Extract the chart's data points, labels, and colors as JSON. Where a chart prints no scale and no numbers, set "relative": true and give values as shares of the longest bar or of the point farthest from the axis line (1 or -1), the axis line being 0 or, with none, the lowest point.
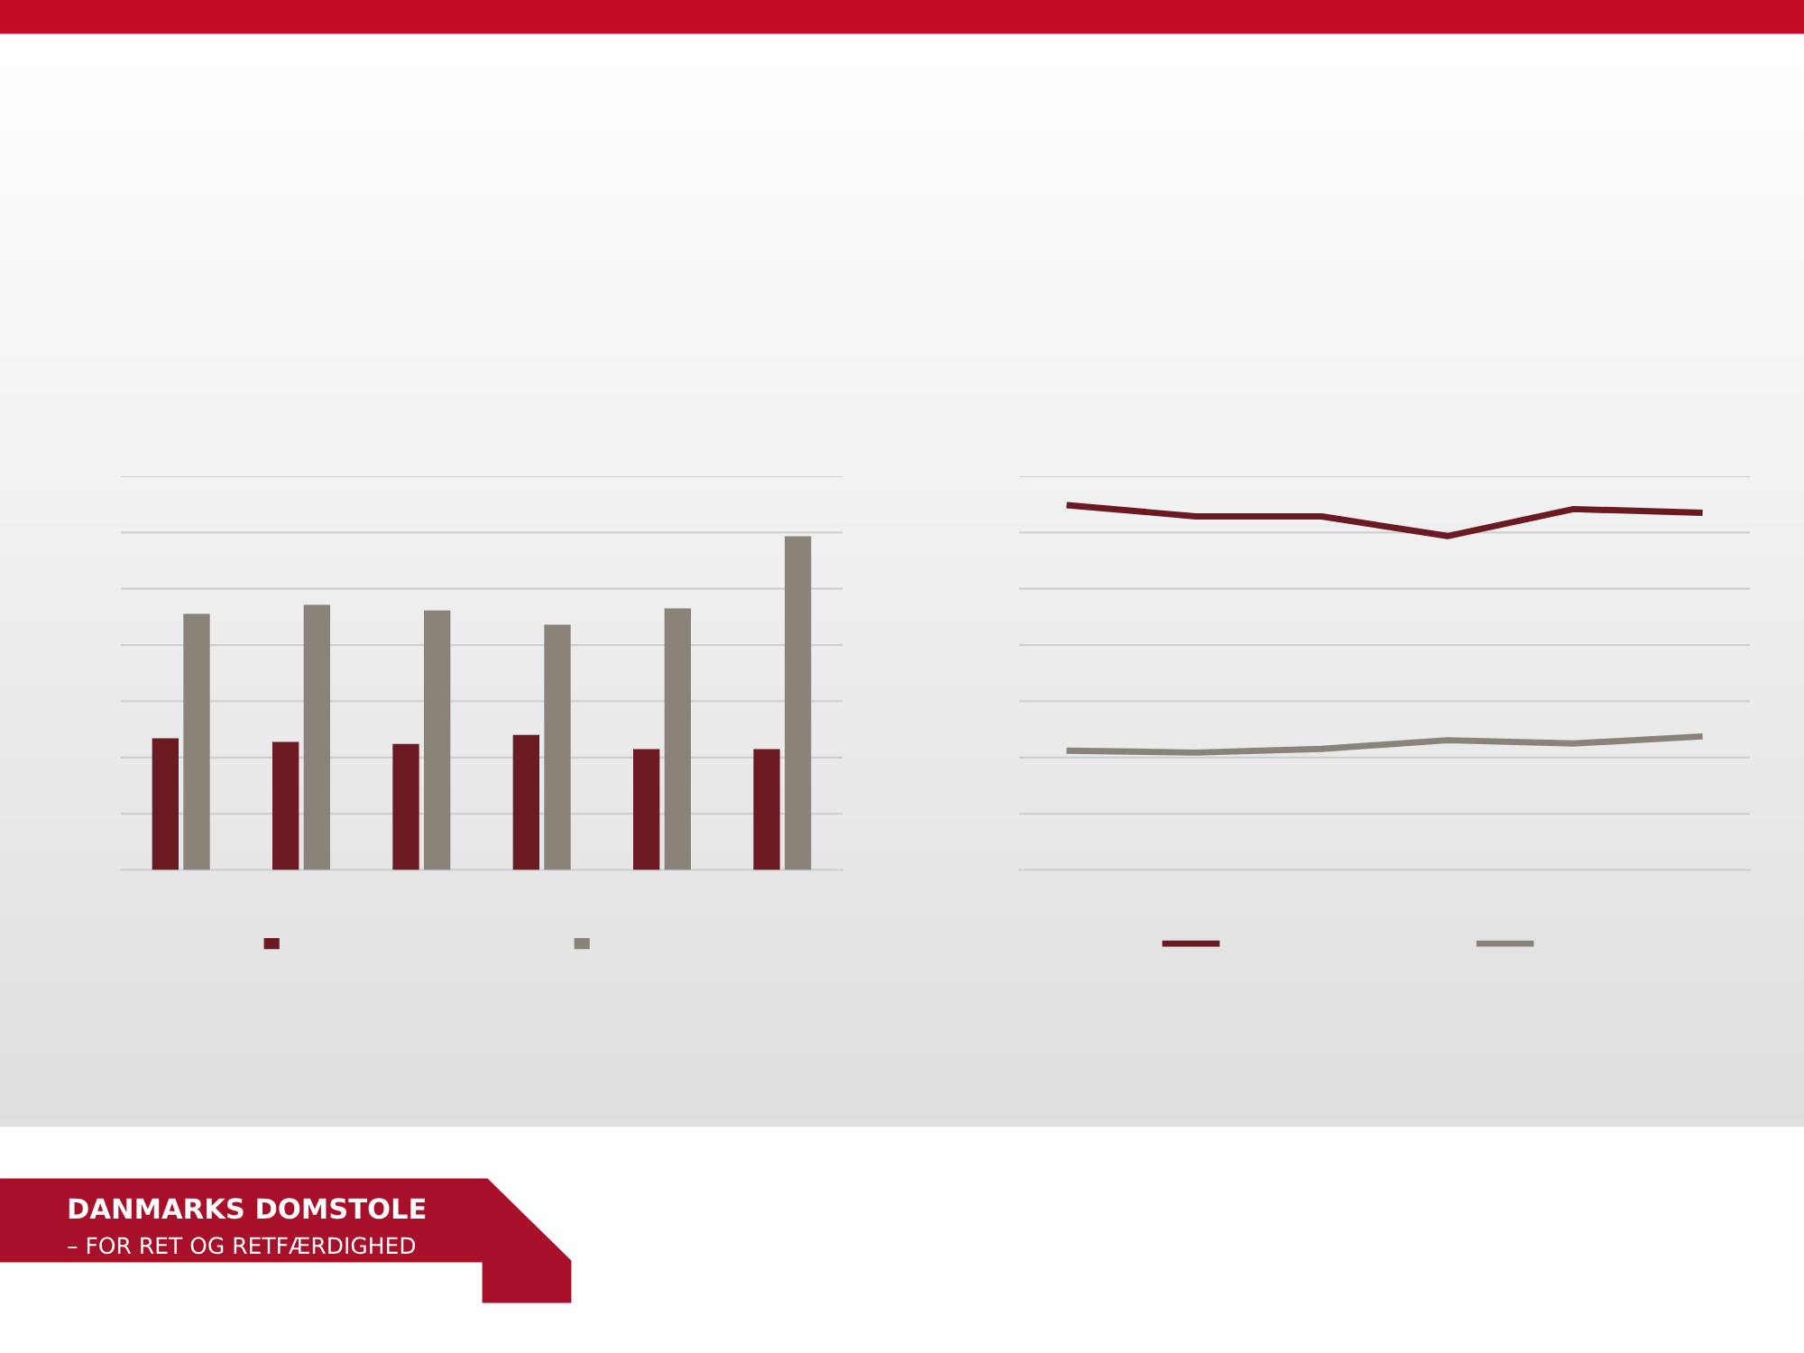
{
  "chart_data": [
    {
      "type": "bar",
      "relative": true,
      "categories": [
        null,
        null,
        null,
        null,
        null,
        null
      ],
      "grid": "y",
      "tick_labels": false,
      "series": [
        {
          "color": "#6b1a22",
          "values": [
            0.395,
            0.384,
            0.378,
            0.405,
            0.362,
            0.362
          ]
        },
        {
          "color": "#8a837a",
          "values": [
            0.768,
            0.795,
            0.778,
            0.735,
            0.784,
            1
          ]
        }
      ]
    },
    {
      "type": "line",
      "relative": true,
      "categories": [
        null,
        null,
        null,
        null,
        null,
        null
      ],
      "grid": "y",
      "tick_labels": false,
      "marker": "none",
      "line_style": "solid",
      "series": [
        {
          "color": "#6b1a22",
          "values": [
            1,
            0.97,
            0.97,
            0.916,
            0.99,
            0.98
          ]
        },
        {
          "color": "#8a837a",
          "values": [
            0.327,
            0.322,
            0.332,
            0.356,
            0.347,
            0.366
          ]
        }
      ],
      "annotations": [
        "DANMARKS DOMSTOLE",
        "– FOR RET OG RETFÆRDIGHED"
      ]
    }
  ]
}
